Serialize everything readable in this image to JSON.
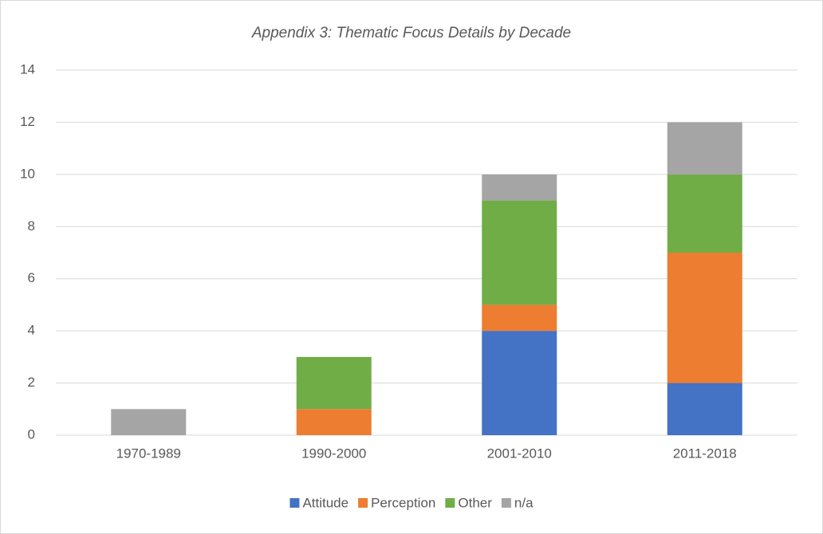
{
  "chart_data": {
    "type": "stacked_bar",
    "title": "Appendix 3: Thematic Focus Details by Decade",
    "categories": [
      "1970-1989",
      "1990-2000",
      "2001-2010",
      "2011-2018"
    ],
    "series": [
      {
        "name": "Attitude",
        "color": "#4472c4",
        "values": [
          0,
          0,
          4,
          2
        ]
      },
      {
        "name": "Perception",
        "color": "#ed7d31",
        "values": [
          0,
          1,
          1,
          5
        ]
      },
      {
        "name": "Other",
        "color": "#70ad47",
        "values": [
          0,
          2,
          4,
          3
        ]
      },
      {
        "name": "n/a",
        "color": "#a5a5a5",
        "values": [
          1,
          0,
          1,
          2
        ]
      }
    ],
    "ylim": [
      0,
      14
    ],
    "yticks": [
      0,
      2,
      4,
      6,
      8,
      10,
      12,
      14
    ],
    "grid": true,
    "legend": "bottom"
  }
}
